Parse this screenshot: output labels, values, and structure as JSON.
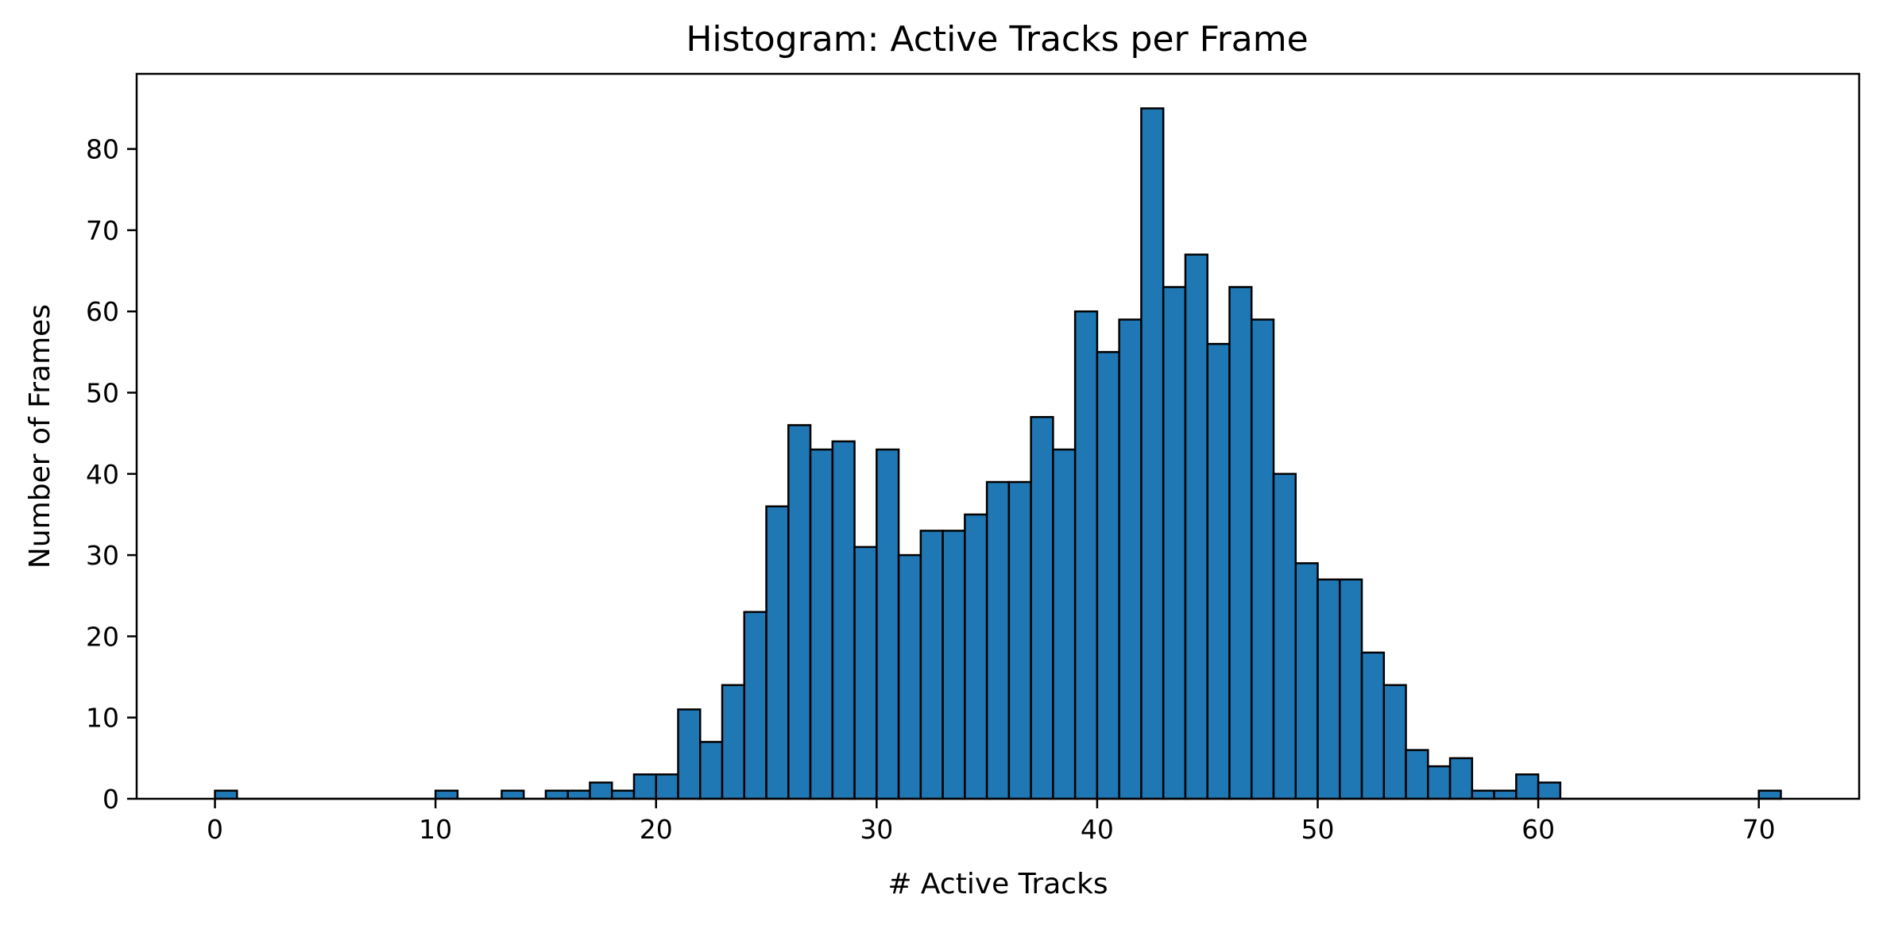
{
  "chart_data": {
    "type": "bar",
    "title": "Histogram: Active Tracks per Frame",
    "xlabel": "# Active Tracks",
    "ylabel": "Number of Frames",
    "xlim": [
      -3.55,
      74.55
    ],
    "ylim": [
      0,
      89.25
    ],
    "x_ticks": [
      0,
      10,
      20,
      30,
      40,
      50,
      60,
      70
    ],
    "x_tick_labels": [
      "0",
      "10",
      "20",
      "30",
      "40",
      "50",
      "60",
      "70"
    ],
    "y_ticks": [
      0,
      10,
      20,
      30,
      40,
      50,
      60,
      70,
      80
    ],
    "y_tick_labels": [
      "0",
      "10",
      "20",
      "30",
      "40",
      "50",
      "60",
      "70",
      "80"
    ],
    "grid": false,
    "bin_width": 1,
    "bin_edges_start": 0,
    "values": [
      1,
      0,
      0,
      0,
      0,
      0,
      0,
      0,
      0,
      0,
      1,
      0,
      0,
      1,
      0,
      1,
      1,
      2,
      1,
      3,
      3,
      11,
      7,
      14,
      23,
      36,
      46,
      43,
      44,
      31,
      43,
      30,
      33,
      33,
      35,
      39,
      39,
      47,
      43,
      60,
      55,
      59,
      85,
      63,
      67,
      56,
      63,
      59,
      40,
      29,
      27,
      27,
      18,
      14,
      6,
      4,
      5,
      1,
      1,
      3,
      2,
      0,
      0,
      0,
      0,
      0,
      0,
      0,
      0,
      0,
      1
    ],
    "bar_color": "#1f77b4",
    "edge_color": "#000000"
  }
}
